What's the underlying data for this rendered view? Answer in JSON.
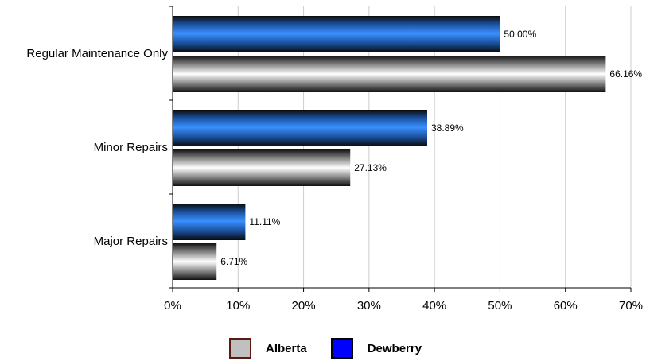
{
  "chart_data": {
    "type": "bar",
    "orientation": "horizontal",
    "categories": [
      "Regular Maintenance Only",
      "Minor Repairs",
      "Major Repairs"
    ],
    "series": [
      {
        "name": "Dewberry",
        "values": [
          50.0,
          38.89,
          11.11
        ],
        "labels": [
          "50.00%",
          "38.89%",
          "11.11%"
        ],
        "color": "#2f86ff"
      },
      {
        "name": "Alberta",
        "values": [
          66.16,
          27.13,
          6.71
        ],
        "labels": [
          "66.16%",
          "27.13%",
          "6.71%"
        ],
        "color": "#c0c0c0"
      }
    ],
    "xlim": [
      0,
      70
    ],
    "xticks": [
      "0%",
      "10%",
      "20%",
      "30%",
      "40%",
      "50%",
      "60%",
      "70%"
    ],
    "grid": true,
    "legend_position": "bottom"
  },
  "legend": [
    {
      "name": "Alberta",
      "fill": "#c0c0c0",
      "border": "#5a1a10"
    },
    {
      "name": "Dewberry",
      "fill": "#0000ff",
      "border": "#000000"
    }
  ]
}
